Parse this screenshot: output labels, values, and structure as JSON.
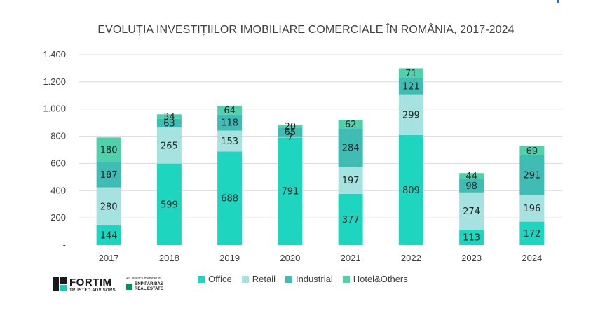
{
  "chart_data": {
    "type": "bar",
    "stacked": true,
    "title": "EVOLUȚIA INVESTIȚIILOR IMOBILIARE COMERCIALE ÎN ROMÂNIA, 2017-2024",
    "categories": [
      "2017",
      "2018",
      "2019",
      "2020",
      "2021",
      "2022",
      "2023",
      "2024"
    ],
    "series": [
      {
        "name": "Office",
        "color": "#1ed6c0",
        "values": [
          144,
          599,
          688,
          791,
          377,
          809,
          113,
          172
        ]
      },
      {
        "name": "Retail",
        "color": "#a6e3e0",
        "values": [
          280,
          265,
          153,
          7,
          197,
          299,
          274,
          196
        ]
      },
      {
        "name": "Industrial",
        "color": "#3fbcb4",
        "values": [
          187,
          63,
          118,
          65,
          284,
          121,
          98,
          291
        ]
      },
      {
        "name": "Hotel&Others",
        "color": "#4fd2ac",
        "values": [
          180,
          34,
          64,
          20,
          62,
          71,
          44,
          69
        ]
      }
    ],
    "ylim": [
      0,
      1400
    ],
    "yticks": [
      0,
      200,
      400,
      600,
      800,
      1000,
      1200,
      1400
    ],
    "ytick_labels": [
      "-",
      "200",
      "400",
      "600",
      "800",
      "1.000",
      "1.200",
      "1.400"
    ],
    "grid": true,
    "legend_position": "bottom"
  },
  "branding": {
    "logo_name": "FORTIM",
    "logo_sub": "TRUSTED ADVISORS",
    "alliance_text": "An alliance member of",
    "partner_line1": "BNP PARIBAS",
    "partner_line2": "REAL ESTATE",
    "colors": {
      "dark": "#1a1a1a",
      "accent": "#1cc9b4",
      "partner": "#00915a"
    }
  }
}
